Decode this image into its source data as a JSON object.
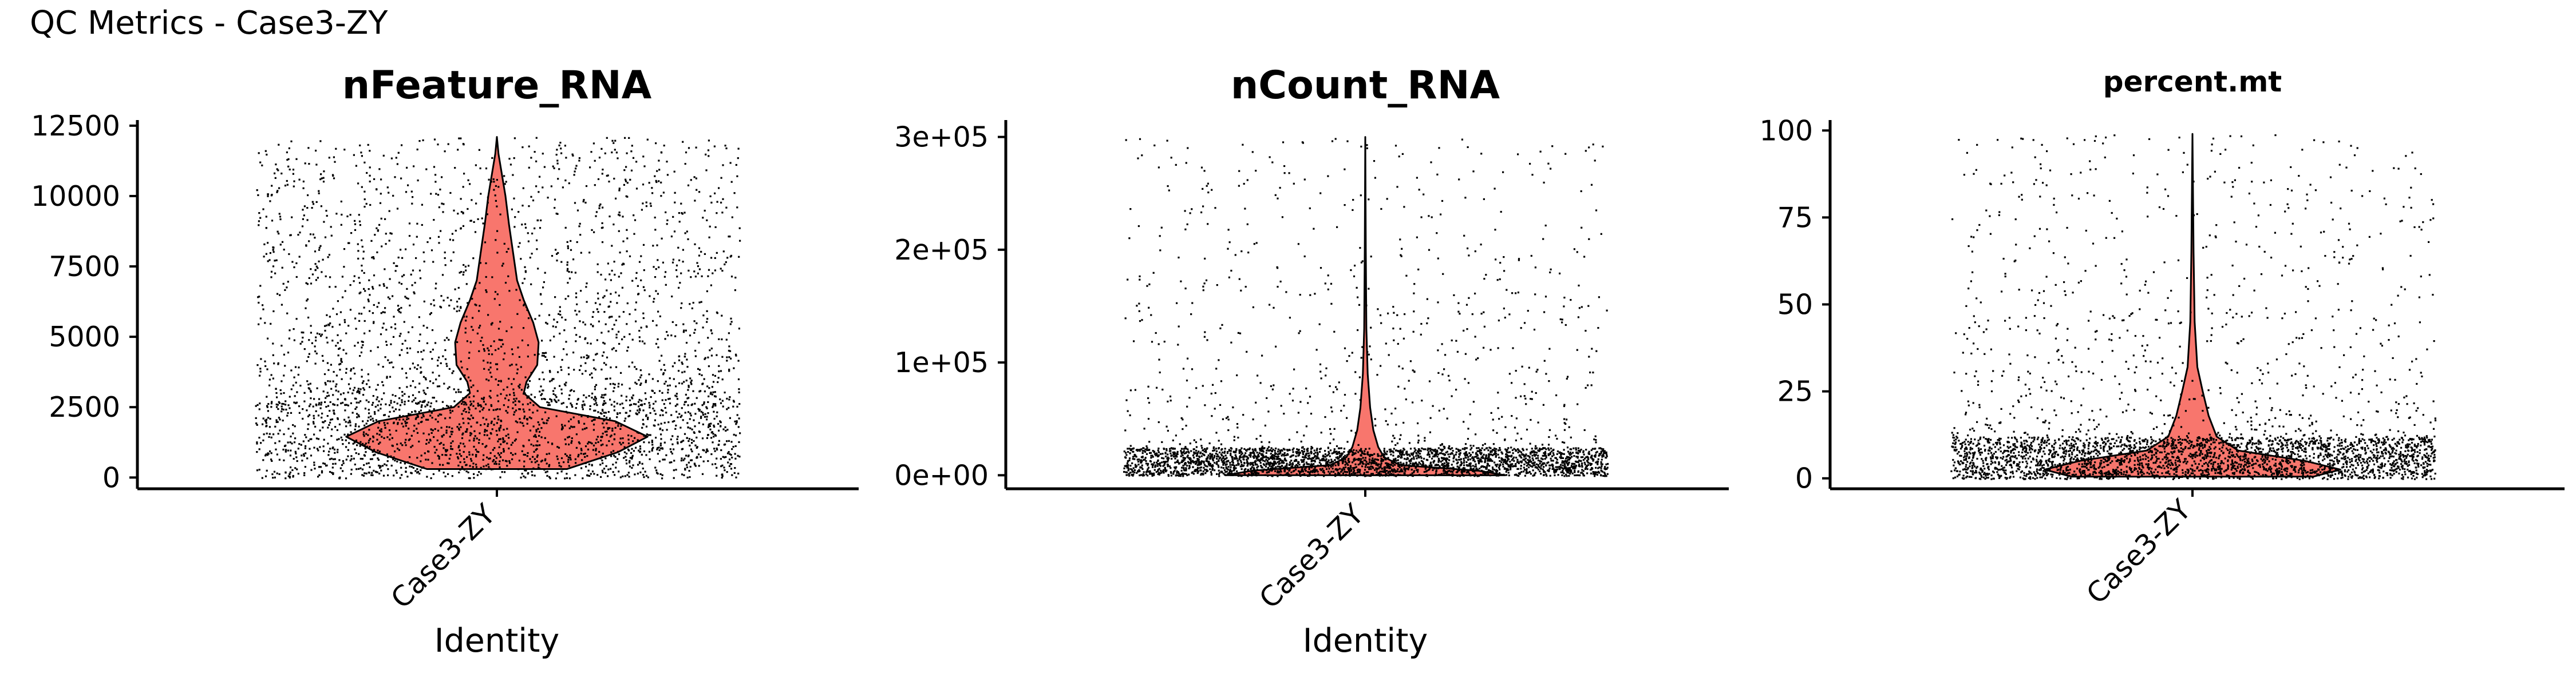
{
  "figure_title": "QC Metrics - Case3-ZY",
  "chart_data": [
    {
      "type": "violin",
      "title": "nFeature_RNA",
      "xlabel": "Identity",
      "ylabel": "",
      "categories": [
        "Case3-ZY"
      ],
      "y_ticks": [
        0,
        2500,
        5000,
        7500,
        10000,
        12500
      ],
      "y_tick_labels": [
        "0",
        "2500",
        "5000",
        "7500",
        "10000",
        "12500"
      ],
      "ylim": [
        -400,
        12700
      ],
      "x_tick_label_size": "large",
      "violin_color": "#F8766D",
      "point_color": "#000000",
      "jitter_points": 3500,
      "point_distribution": {
        "low_max": 2600,
        "low_fraction": 0.42,
        "max": 12100
      },
      "density_profile": [
        {
          "y": 300,
          "half_width": 0.26
        },
        {
          "y": 900,
          "half_width": 0.45
        },
        {
          "y": 1450,
          "half_width": 0.56
        },
        {
          "y": 2000,
          "half_width": 0.44
        },
        {
          "y": 2500,
          "half_width": 0.16
        },
        {
          "y": 3000,
          "half_width": 0.1
        },
        {
          "y": 3400,
          "half_width": 0.11
        },
        {
          "y": 4000,
          "half_width": 0.15
        },
        {
          "y": 4800,
          "half_width": 0.155
        },
        {
          "y": 5500,
          "half_width": 0.135
        },
        {
          "y": 6300,
          "half_width": 0.1
        },
        {
          "y": 7000,
          "half_width": 0.075
        },
        {
          "y": 8000,
          "half_width": 0.06
        },
        {
          "y": 9000,
          "half_width": 0.045
        },
        {
          "y": 10000,
          "half_width": 0.032
        },
        {
          "y": 10800,
          "half_width": 0.018
        },
        {
          "y": 11500,
          "half_width": 0.006
        },
        {
          "y": 12100,
          "half_width": 0.0
        }
      ]
    },
    {
      "type": "violin",
      "title": "nCount_RNA",
      "xlabel": "Identity",
      "ylabel": "",
      "categories": [
        "Case3-ZY"
      ],
      "y_ticks": [
        0,
        100000,
        200000,
        300000
      ],
      "y_tick_labels": [
        "0e+00",
        "1e+05",
        "2e+05",
        "3e+05"
      ],
      "ylim": [
        -12000,
        315000
      ],
      "x_tick_label_size": "large",
      "violin_color": "#F8766D",
      "point_color": "#000000",
      "jitter_points": 3500,
      "point_distribution": {
        "low_max": 25000,
        "low_fraction": 0.82,
        "max": 300000
      },
      "density_profile": [
        {
          "y": 0,
          "half_width": 0.52
        },
        {
          "y": 4000,
          "half_width": 0.42
        },
        {
          "y": 9000,
          "half_width": 0.13
        },
        {
          "y": 16000,
          "half_width": 0.07
        },
        {
          "y": 25000,
          "half_width": 0.048
        },
        {
          "y": 40000,
          "half_width": 0.03
        },
        {
          "y": 60000,
          "half_width": 0.018
        },
        {
          "y": 90000,
          "half_width": 0.009
        },
        {
          "y": 130000,
          "half_width": 0.004
        },
        {
          "y": 200000,
          "half_width": 0.002
        },
        {
          "y": 300000,
          "half_width": 0.0
        }
      ]
    },
    {
      "type": "violin",
      "title": "percent.mt",
      "xlabel": "",
      "ylabel": "",
      "categories": [
        "Case3-ZY"
      ],
      "y_ticks": [
        0,
        25,
        50,
        75,
        100
      ],
      "y_tick_labels": [
        "0",
        "25",
        "50",
        "75",
        "100"
      ],
      "ylim": [
        -3,
        103
      ],
      "x_tick_label_size": "small",
      "violin_color": "#F8766D",
      "point_color": "#000000",
      "jitter_points": 3500,
      "point_distribution": {
        "low_max": 12,
        "low_fraction": 0.78,
        "max": 99
      },
      "density_profile": [
        {
          "y": 0.5,
          "half_width": 0.45
        },
        {
          "y": 2.5,
          "half_width": 0.55
        },
        {
          "y": 5,
          "half_width": 0.42
        },
        {
          "y": 8,
          "half_width": 0.17
        },
        {
          "y": 12,
          "half_width": 0.09
        },
        {
          "y": 18,
          "half_width": 0.06
        },
        {
          "y": 25,
          "half_width": 0.038
        },
        {
          "y": 32,
          "half_width": 0.018
        },
        {
          "y": 45,
          "half_width": 0.008
        },
        {
          "y": 65,
          "half_width": 0.004
        },
        {
          "y": 99,
          "half_width": 0.0
        }
      ]
    }
  ]
}
